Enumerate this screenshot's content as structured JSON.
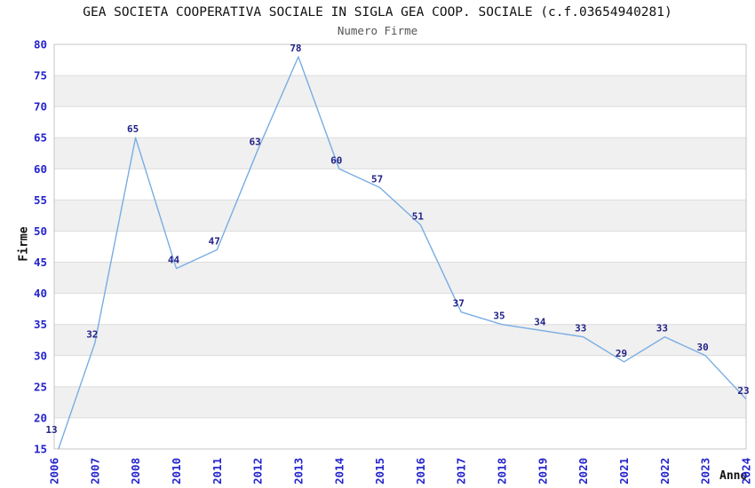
{
  "chart_data": {
    "type": "line",
    "title": "GEA SOCIETA COOPERATIVA SOCIALE IN SIGLA GEA COOP. SOCIALE (c.f.03654940281)",
    "subtitle": "Numero Firme",
    "xlabel": "Anno",
    "ylabel": "Firme",
    "categories": [
      "2006",
      "2007",
      "2008",
      "2010",
      "2011",
      "2012",
      "2013",
      "2014",
      "2015",
      "2016",
      "2017",
      "2018",
      "2019",
      "2020",
      "2021",
      "2022",
      "2023",
      "2024"
    ],
    "values": [
      13,
      32,
      65,
      44,
      47,
      63,
      78,
      60,
      57,
      51,
      37,
      35,
      34,
      33,
      29,
      33,
      30,
      23
    ],
    "ylim": [
      15,
      80
    ],
    "ytick_step": 5,
    "grid": true,
    "legend": "none",
    "colors": {
      "line": "#78ADE3",
      "tick_label": "#2424CD",
      "data_label": "#222288",
      "band": "#F0F0F0",
      "gridline": "#DCDCDC",
      "plot_border": "#C6C6C6",
      "title": "#111111",
      "subtitle": "#555555"
    }
  }
}
